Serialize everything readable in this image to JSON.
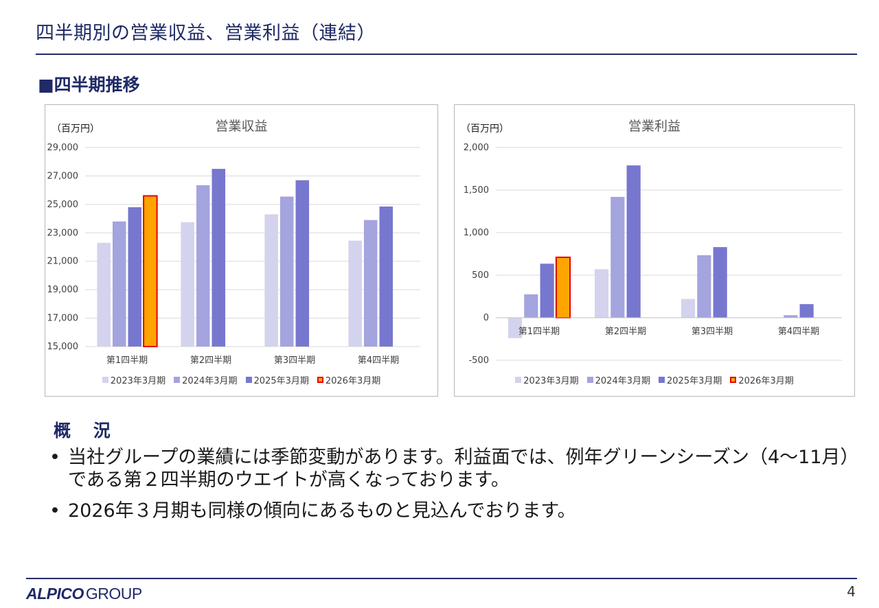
{
  "header": {
    "title": "四半期別の営業収益、営業利益（連結）",
    "section": "■四半期推移"
  },
  "colors": {
    "FY2023": "#d3d3ee",
    "FY2024": "#a4a4de",
    "FY2025": "#7777cf",
    "FY2026_fill": "#ffa500",
    "FY2026_border": "#e60000",
    "axis_text": "#404040",
    "grid": "#d9d9d9",
    "brand": "#1f2a66"
  },
  "chart_data": [
    {
      "type": "bar",
      "title": "営業収益",
      "unit": "（百万円）",
      "categories": [
        "第1四半期",
        "第2四半期",
        "第3四半期",
        "第4四半期"
      ],
      "ylim": [
        15000,
        29000
      ],
      "yticks": [
        15000,
        17000,
        19000,
        21000,
        23000,
        25000,
        27000,
        29000
      ],
      "ytick_labels": [
        "15,000",
        "17,000",
        "19,000",
        "21,000",
        "23,000",
        "25,000",
        "27,000",
        "29,000"
      ],
      "grid": true,
      "legend": "bottom",
      "series": [
        {
          "name": "2023年3月期",
          "values": [
            22300,
            23750,
            24300,
            22450
          ]
        },
        {
          "name": "2024年3月期",
          "values": [
            23800,
            26350,
            25550,
            23900
          ]
        },
        {
          "name": "2025年3月期",
          "values": [
            24800,
            27500,
            26700,
            24850
          ]
        },
        {
          "name": "2026年3月期",
          "values": [
            25600,
            null,
            null,
            null
          ]
        }
      ]
    },
    {
      "type": "bar",
      "title": "営業利益",
      "unit": "（百万円）",
      "categories": [
        "第1四半期",
        "第2四半期",
        "第3四半期",
        "第4四半期"
      ],
      "ylim": [
        -500,
        2000
      ],
      "yticks": [
        -500,
        0,
        500,
        1000,
        1500,
        2000
      ],
      "ytick_labels": [
        "-500",
        "0",
        "500",
        "1,000",
        "1,500",
        "2,000"
      ],
      "grid": true,
      "legend": "bottom",
      "series": [
        {
          "name": "2023年3月期",
          "values": [
            -240,
            570,
            220,
            0
          ]
        },
        {
          "name": "2024年3月期",
          "values": [
            275,
            1420,
            735,
            30
          ]
        },
        {
          "name": "2025年3月期",
          "values": [
            635,
            1790,
            830,
            160
          ]
        },
        {
          "name": "2026年3月期",
          "values": [
            710,
            null,
            null,
            null
          ]
        }
      ]
    }
  ],
  "summary": {
    "heading": "概 況",
    "bullet_symbol": "•",
    "items": [
      "当社グループの業績には季節変動があります。利益面では、例年グリーンシーズン（4～11月）である第２四半期のウエイトが高くなっております。",
      "2026年３月期も同様の傾向にあるものと見込んでおります。"
    ]
  },
  "footer": {
    "logo_strong": "ALPICO",
    "logo_light": "GROUP",
    "page_number": "4"
  }
}
